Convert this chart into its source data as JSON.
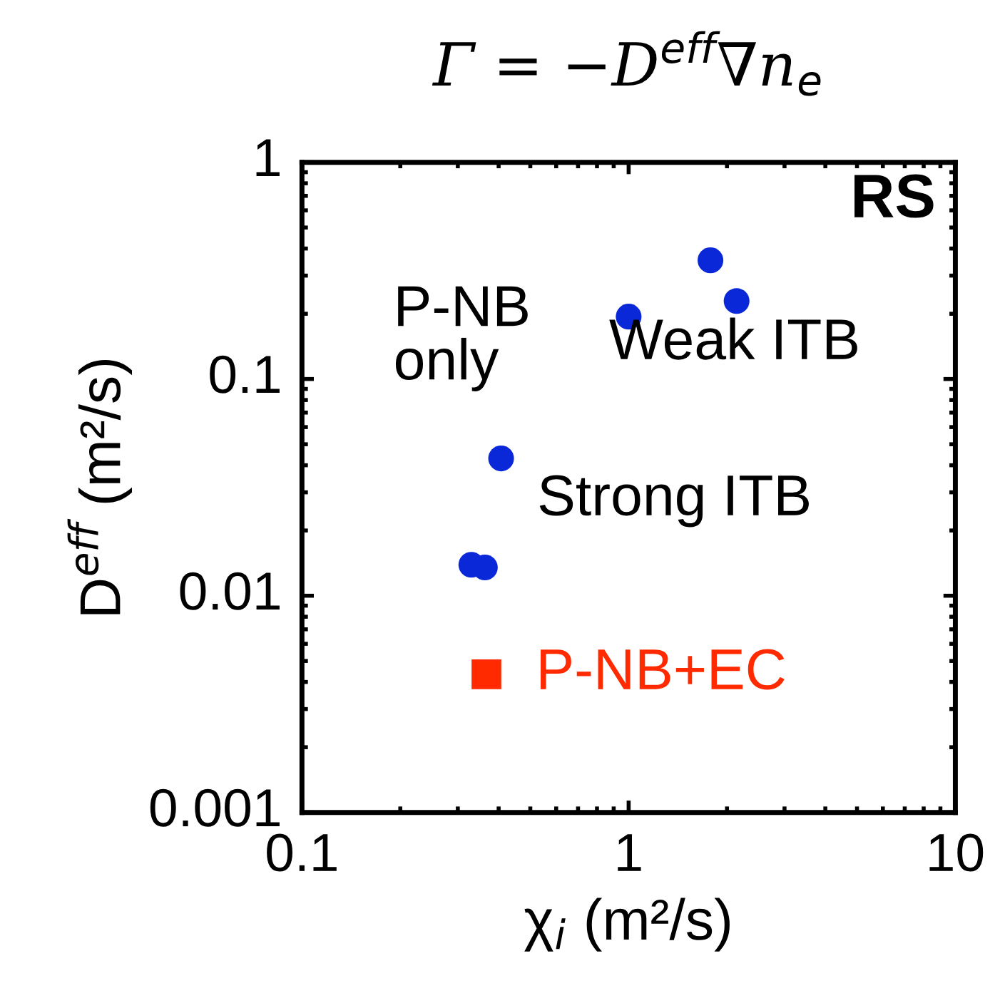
{
  "chart_data": {
    "type": "scatter",
    "title": "Γ = −D$^{eff}$∇n$_{e}$",
    "xlabel": "χ$_{i}$ (m²/s)",
    "ylabel": "D$^{eff}$ (m²/s)",
    "log": "xy",
    "xlim": [
      0.1,
      10
    ],
    "ylim": [
      0.001,
      1
    ],
    "xticks": [
      0.1,
      1,
      10
    ],
    "yticks": [
      0.001,
      0.01,
      0.1,
      1
    ],
    "grid": false,
    "legend": false,
    "series": [
      {
        "color": "#0a28d8",
        "marker": "circle",
        "x": [
          1.0,
          1.78,
          2.14,
          0.407,
          0.33,
          0.363
        ],
        "values": [
          0.194,
          0.353,
          0.229,
          0.043,
          0.0139,
          0.0135
        ]
      },
      {
        "name": "P-NB+EC",
        "color": "#ff2a00",
        "marker": "square",
        "x": [
          0.367
        ],
        "values": [
          0.00434
        ]
      }
    ],
    "annotations": [
      "RS",
      "P-NB\nonly",
      "Weak ITB",
      "Strong ITB"
    ]
  }
}
